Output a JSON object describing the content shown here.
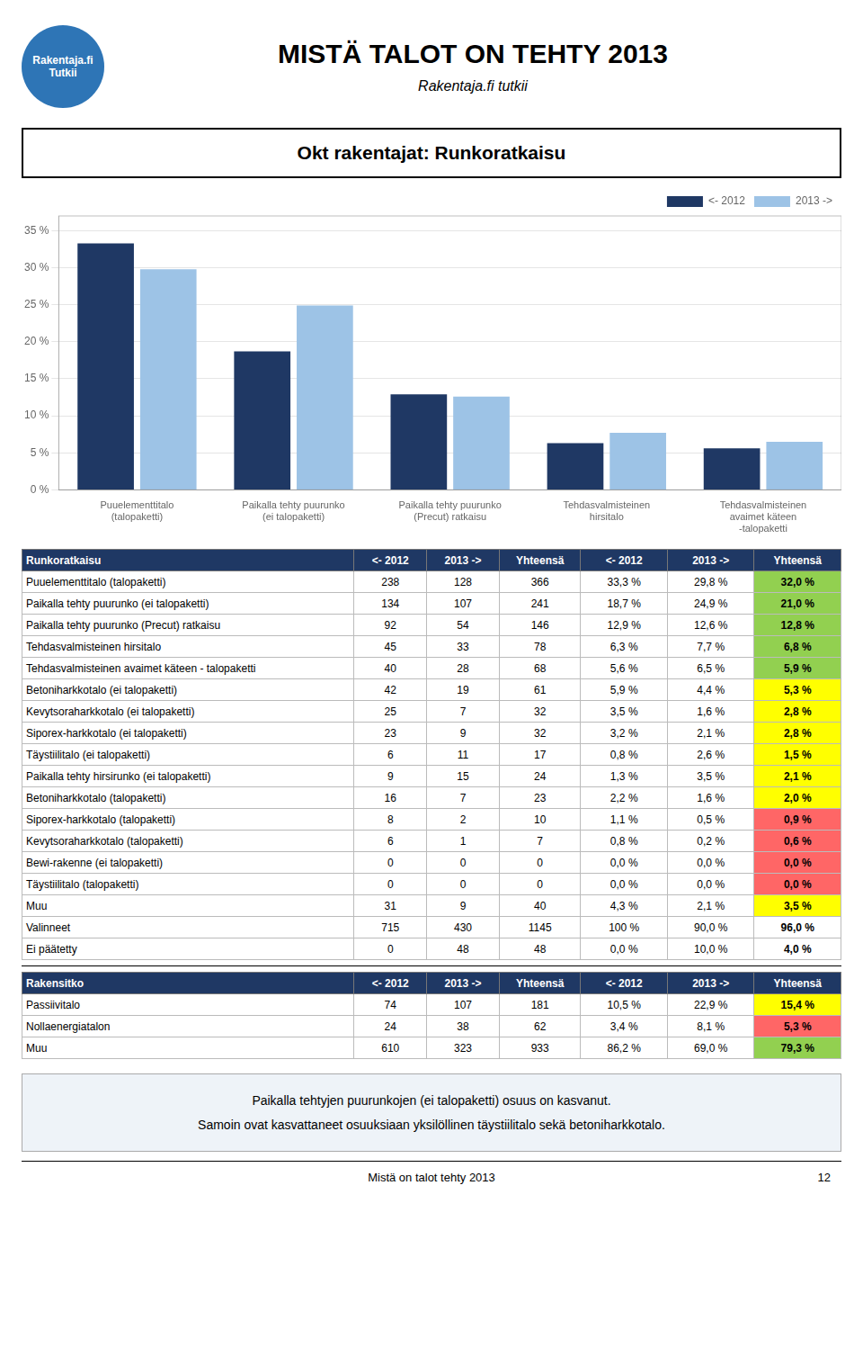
{
  "chart_data": {
    "type": "bar",
    "title": "MISTÄ TALOT ON TEHTY 2013",
    "subtitle": "Rakentaja.fi tutkii",
    "categories": [
      "Puuelementtitalo (talopaketti)",
      "Paikalla tehty puurunko (ei talopaketti)",
      "Paikalla tehty puurunko (Precut) ratkaisu",
      "Tehdasvalmisteinen hirsitalo",
      "Tehdasvalmisteinen avaimet käteen -talopaketti"
    ],
    "series": [
      {
        "name": "<- 2012",
        "color": "#1F3864",
        "values": [
          33.3,
          18.7,
          12.9,
          6.3,
          5.6
        ]
      },
      {
        "name": "2013 ->",
        "color": "#9DC3E6",
        "values": [
          29.8,
          24.9,
          12.6,
          7.7,
          6.5
        ]
      }
    ],
    "ylim": [
      0,
      37
    ],
    "yticks": [
      {
        "value": 0,
        "label": "0 %"
      },
      {
        "value": 5,
        "label": "5 %"
      },
      {
        "value": 10,
        "label": "10 %"
      },
      {
        "value": 15,
        "label": "15 %"
      },
      {
        "value": 20,
        "label": "20 %"
      },
      {
        "value": 25,
        "label": "25 %"
      },
      {
        "value": 30,
        "label": "30 %"
      },
      {
        "value": 35,
        "label": "35 %"
      }
    ],
    "grid": true,
    "legend": "top-right"
  },
  "page": {
    "logo": [
      "Rakentaja.fi",
      "Tutkii"
    ],
    "section_title": "Okt rakentajat: Runkoratkaisu",
    "notes": [
      "Paikalla tehtyjen puurunkojen (ei talopaketti) osuus on kasvanut.",
      "Samoin ovat kasvattaneet osuuksiaan yksilöllinen täystiilitalo sekä betoniharkkotalo."
    ],
    "page_footer": "Mistä on talot tehty 2013",
    "page_number": "12"
  },
  "tables": [
    {
      "header_color": "#1F3864",
      "header_text_color": "#FFFFFF",
      "header": [
        "Runkoratkaisu",
        "<- 2012",
        "2013 ->",
        "Yhteensä",
        "<- 2012",
        "2013 ->",
        "Yhteensä"
      ],
      "rows": [
        [
          "Puuelementtitalo (talopaketti)",
          "238",
          "128",
          "366",
          "33,3 %",
          "29,8 %",
          "32,0 %"
        ],
        [
          "Paikalla tehty puurunko (ei talopaketti)",
          "134",
          "107",
          "241",
          "18,7 %",
          "24,9 %",
          "21,0 %"
        ],
        [
          "Paikalla tehty puurunko (Precut) ratkaisu",
          "92",
          "54",
          "146",
          "12,9 %",
          "12,6 %",
          "12,8 %"
        ],
        [
          "Tehdasvalmisteinen hirsitalo",
          "45",
          "33",
          "78",
          "6,3 %",
          "7,7 %",
          "6,8 %"
        ],
        [
          "Tehdasvalmisteinen avaimet käteen - talopaketti",
          "40",
          "28",
          "68",
          "5,6 %",
          "6,5 %",
          "5,9 %"
        ],
        [
          "Betoniharkkotalo (ei talopaketti)",
          "42",
          "19",
          "61",
          "5,9 %",
          "4,4 %",
          "5,3 %"
        ],
        [
          "Kevytsoraharkkotalo (ei talopaketti)",
          "25",
          "7",
          "32",
          "3,5 %",
          "1,6 %",
          "2,8 %"
        ],
        [
          "Siporex-harkkotalo (ei talopaketti)",
          "23",
          "9",
          "32",
          "3,2 %",
          "2,1 %",
          "2,8 %"
        ],
        [
          "Täystiilitalo (ei talopaketti)",
          "6",
          "11",
          "17",
          "0,8 %",
          "2,6 %",
          "1,5 %"
        ],
        [
          "Paikalla tehty hirsirunko (ei talopaketti)",
          "9",
          "15",
          "24",
          "1,3 %",
          "3,5 %",
          "2,1 %"
        ],
        [
          "Betoniharkkotalo (talopaketti)",
          "16",
          "7",
          "23",
          "2,2 %",
          "1,6 %",
          "2,0 %"
        ],
        [
          "Siporex-harkkotalo (talopaketti)",
          "8",
          "2",
          "10",
          "1,1 %",
          "0,5 %",
          "0,9 %"
        ],
        [
          "Kevytsoraharkkotalo (talopaketti)",
          "6",
          "1",
          "7",
          "0,8 %",
          "0,2 %",
          "0,6 %"
        ],
        [
          "Bewi-rakenne (ei talopaketti)",
          "0",
          "0",
          "0",
          "0,0 %",
          "0,0 %",
          "0,0 %"
        ],
        [
          "Täystiilitalo (talopaketti)",
          "0",
          "0",
          "0",
          "0,0 %",
          "0,0 %",
          "0,0 %"
        ],
        [
          "Muu",
          "31",
          "9",
          "40",
          "4,3 %",
          "2,1 %",
          "3,5 %"
        ],
        [
          "Valinneet",
          "715",
          "430",
          "1145",
          "100 %",
          "90,0 %",
          "96,0 %"
        ],
        [
          "Ei päätetty",
          "0",
          "48",
          "48",
          "0,0 %",
          "10,0 %",
          "4,0 %"
        ]
      ],
      "total_colors": [
        "#92D050",
        "#92D050",
        "#92D050",
        "#92D050",
        "#92D050",
        "#FFFF00",
        "#FFFF00",
        "#FFFF00",
        "#FFFF00",
        "#FFFF00",
        "#FFFF00",
        "#FF6666",
        "#FF6666",
        "#FF6666",
        "#FF6666",
        "#FFFF00",
        "#FFFFFF",
        "#FFFFFF"
      ]
    },
    {
      "header_color": "#1F3864",
      "header_text_color": "#FFFFFF",
      "header": [
        "Rakensitko",
        "<- 2012",
        "2013 ->",
        "Yhteensä",
        "<- 2012",
        "2013 ->",
        "Yhteensä"
      ],
      "rows": [
        [
          "Passiivitalo",
          "74",
          "107",
          "181",
          "10,5 %",
          "22,9 %",
          "15,4 %"
        ],
        [
          "Nollaenergiatalon",
          "24",
          "38",
          "62",
          "3,4 %",
          "8,1 %",
          "5,3 %"
        ],
        [
          "Muu",
          "610",
          "323",
          "933",
          "86,2 %",
          "69,0 %",
          "79,3 %"
        ]
      ],
      "total_colors": [
        "#FFFF00",
        "#FF6666",
        "#92D050"
      ]
    }
  ]
}
